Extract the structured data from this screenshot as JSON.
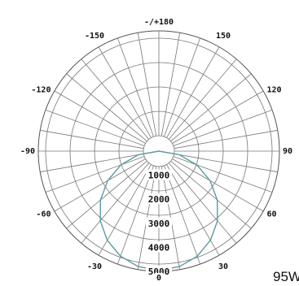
{
  "chart_data": {
    "type": "polar",
    "title": "",
    "angle_labels": [
      {
        "angle": 180,
        "text": "-/+180"
      },
      {
        "angle": 150,
        "text": "150"
      },
      {
        "angle": -150,
        "text": "-150"
      },
      {
        "angle": 120,
        "text": "120"
      },
      {
        "angle": -120,
        "text": "-120"
      },
      {
        "angle": 90,
        "text": "90"
      },
      {
        "angle": -90,
        "text": "-90"
      },
      {
        "angle": 60,
        "text": "60"
      },
      {
        "angle": -60,
        "text": "-60"
      },
      {
        "angle": 30,
        "text": "30"
      },
      {
        "angle": -30,
        "text": "-30"
      },
      {
        "angle": 0,
        "text": "0"
      }
    ],
    "angle_step": 10,
    "radial_labels": [
      "1000",
      "2000",
      "3000",
      "4000",
      "5000"
    ],
    "radial_max": 5000,
    "series": [
      {
        "name": "",
        "color": "#5a9aa0",
        "points": [
          {
            "angle": 0,
            "value": 4950
          },
          {
            "angle": 10,
            "value": 4880
          },
          {
            "angle": 20,
            "value": 4650
          },
          {
            "angle": 30,
            "value": 4280
          },
          {
            "angle": 40,
            "value": 3780
          },
          {
            "angle": 50,
            "value": 3160
          },
          {
            "angle": 60,
            "value": 2450
          },
          {
            "angle": 70,
            "value": 1680
          },
          {
            "angle": 80,
            "value": 860
          },
          {
            "angle": 90,
            "value": 0
          },
          {
            "angle": -10,
            "value": 4880
          },
          {
            "angle": -20,
            "value": 4650
          },
          {
            "angle": -30,
            "value": 4280
          },
          {
            "angle": -40,
            "value": 3780
          },
          {
            "angle": -50,
            "value": 3160
          },
          {
            "angle": -60,
            "value": 2450
          },
          {
            "angle": -70,
            "value": 1680
          },
          {
            "angle": -80,
            "value": 860
          },
          {
            "angle": -90,
            "value": 0
          }
        ]
      }
    ]
  },
  "power_label": "95W"
}
